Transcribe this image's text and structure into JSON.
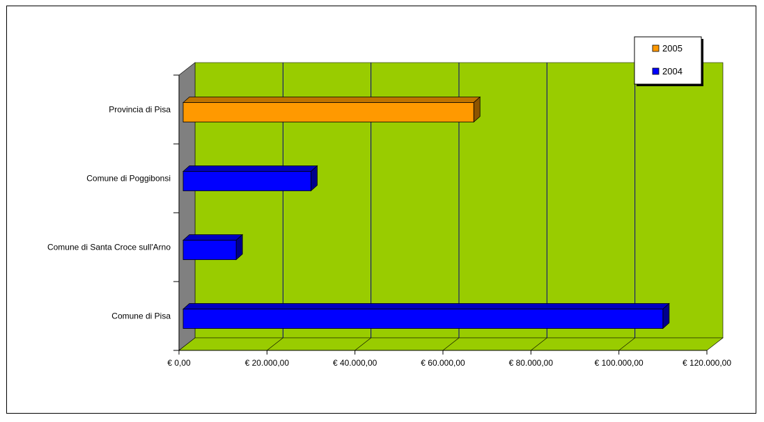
{
  "chart_data": {
    "type": "bar",
    "orientation": "horizontal",
    "categories": [
      "Comune di Pisa",
      "Comune di Santa Croce sull'Arno",
      "Comune di Poggibonsi",
      "Provincia di Pisa"
    ],
    "series": [
      {
        "name": "2004",
        "color": "#0000ff",
        "values": [
          110000,
          13000,
          30000,
          null
        ]
      },
      {
        "name": "2005",
        "color": "#ff9900",
        "values": [
          null,
          null,
          null,
          67000
        ]
      }
    ],
    "xlim": [
      0,
      120000
    ],
    "x_ticks": [
      0,
      20000,
      40000,
      60000,
      80000,
      100000,
      120000
    ],
    "x_tick_labels": [
      "€ 0,00",
      "€ 20.000,00",
      "€ 40.000,00",
      "€ 60.000,00",
      "€ 80.000,00",
      "€ 100.000,00",
      "€ 120.000,00"
    ],
    "grid": true,
    "plot_background": "#99cc00",
    "legend": {
      "placement": "top-right",
      "entries": [
        {
          "label": "2005",
          "color": "#ff9900"
        },
        {
          "label": "2004",
          "color": "#0000ff"
        }
      ]
    },
    "title": "",
    "xlabel": "",
    "ylabel": ""
  }
}
